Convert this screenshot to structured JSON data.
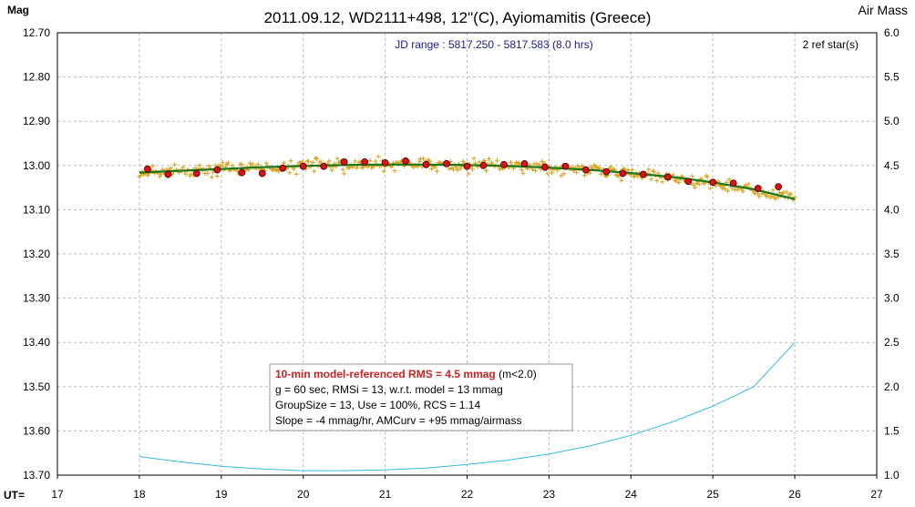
{
  "chart_data": {
    "type": "scatter",
    "title": "2011.09.12, WD2111+498, 12\"(C), Ayiomamitis (Greece)",
    "ylabel_left": "Mag",
    "ylabel_right": "Air Mass",
    "xlabel": "UT=",
    "jd_range": "JD range : 5817.250 - 5817.583 (8.0 hrs)",
    "ref_stars": "2 ref star(s)",
    "xlim": [
      17,
      27
    ],
    "ylim_mag": [
      12.7,
      13.7
    ],
    "ylim_airmass": [
      1.0,
      6.0
    ],
    "x_ticks": [
      "17",
      "18",
      "19",
      "20",
      "21",
      "22",
      "23",
      "24",
      "25",
      "26",
      "27"
    ],
    "y_ticks_left": [
      "12.70",
      "12.80",
      "12.90",
      "13.00",
      "13.10",
      "13.20",
      "13.30",
      "13.40",
      "13.50",
      "13.60",
      "13.70"
    ],
    "y_ticks_right": [
      "6.0",
      "5.5",
      "5.0",
      "4.5",
      "4.0",
      "3.5",
      "3.0",
      "2.5",
      "2.0",
      "1.5",
      "1.0"
    ],
    "grid": true,
    "colors": {
      "raw_points": "#d4a017",
      "binned_points": "#dd1111",
      "model_fit": "#1a7a1a",
      "airmass": "#33bbdd"
    },
    "binned_means": [
      {
        "ut": 18.1,
        "mag": 13.008
      },
      {
        "ut": 18.35,
        "mag": 13.02
      },
      {
        "ut": 18.7,
        "mag": 13.018
      },
      {
        "ut": 18.95,
        "mag": 13.01
      },
      {
        "ut": 19.25,
        "mag": 13.016
      },
      {
        "ut": 19.5,
        "mag": 13.018
      },
      {
        "ut": 19.75,
        "mag": 13.006
      },
      {
        "ut": 20.0,
        "mag": 13.002
      },
      {
        "ut": 20.25,
        "mag": 13.002
      },
      {
        "ut": 20.5,
        "mag": 12.992
      },
      {
        "ut": 20.75,
        "mag": 12.992
      },
      {
        "ut": 21.0,
        "mag": 12.994
      },
      {
        "ut": 21.25,
        "mag": 12.99
      },
      {
        "ut": 21.5,
        "mag": 12.998
      },
      {
        "ut": 21.75,
        "mag": 12.996
      },
      {
        "ut": 22.0,
        "mag": 13.002
      },
      {
        "ut": 22.2,
        "mag": 13.0
      },
      {
        "ut": 22.45,
        "mag": 12.998
      },
      {
        "ut": 22.7,
        "mag": 12.996
      },
      {
        "ut": 22.95,
        "mag": 13.004
      },
      {
        "ut": 23.2,
        "mag": 13.002
      },
      {
        "ut": 23.45,
        "mag": 13.01
      },
      {
        "ut": 23.7,
        "mag": 13.014
      },
      {
        "ut": 23.9,
        "mag": 13.018
      },
      {
        "ut": 24.15,
        "mag": 13.02
      },
      {
        "ut": 24.45,
        "mag": 13.026
      },
      {
        "ut": 24.7,
        "mag": 13.036
      },
      {
        "ut": 25.0,
        "mag": 13.038
      },
      {
        "ut": 25.25,
        "mag": 13.04
      },
      {
        "ut": 25.55,
        "mag": 13.052
      },
      {
        "ut": 25.8,
        "mag": 13.048
      }
    ],
    "model_fit": [
      {
        "ut": 18.0,
        "mag": 13.016
      },
      {
        "ut": 18.5,
        "mag": 13.012
      },
      {
        "ut": 19.0,
        "mag": 13.008
      },
      {
        "ut": 19.5,
        "mag": 13.004
      },
      {
        "ut": 20.0,
        "mag": 13.001
      },
      {
        "ut": 20.5,
        "mag": 12.999
      },
      {
        "ut": 21.0,
        "mag": 12.998
      },
      {
        "ut": 21.5,
        "mag": 12.998
      },
      {
        "ut": 22.0,
        "mag": 12.999
      },
      {
        "ut": 22.5,
        "mag": 13.001
      },
      {
        "ut": 23.0,
        "mag": 13.005
      },
      {
        "ut": 23.5,
        "mag": 13.01
      },
      {
        "ut": 24.0,
        "mag": 13.017
      },
      {
        "ut": 24.5,
        "mag": 13.026
      },
      {
        "ut": 25.0,
        "mag": 13.038
      },
      {
        "ut": 25.5,
        "mag": 13.054
      },
      {
        "ut": 26.0,
        "mag": 13.076
      }
    ],
    "airmass": [
      {
        "ut": 18.0,
        "am": 1.21
      },
      {
        "ut": 18.5,
        "am": 1.15
      },
      {
        "ut": 19.0,
        "am": 1.1
      },
      {
        "ut": 19.5,
        "am": 1.07
      },
      {
        "ut": 20.0,
        "am": 1.05
      },
      {
        "ut": 20.5,
        "am": 1.05
      },
      {
        "ut": 21.0,
        "am": 1.06
      },
      {
        "ut": 21.5,
        "am": 1.08
      },
      {
        "ut": 22.0,
        "am": 1.12
      },
      {
        "ut": 22.5,
        "am": 1.17
      },
      {
        "ut": 23.0,
        "am": 1.24
      },
      {
        "ut": 23.5,
        "am": 1.33
      },
      {
        "ut": 24.0,
        "am": 1.45
      },
      {
        "ut": 24.5,
        "am": 1.6
      },
      {
        "ut": 25.0,
        "am": 1.78
      },
      {
        "ut": 25.5,
        "am": 2.0
      },
      {
        "ut": 26.0,
        "am": 2.5
      }
    ],
    "raw_scatter_sigma_mag": 0.013,
    "raw_cadence_sec": 60,
    "info_box": {
      "line1_bold": "10-min model-referenced RMS = 4.5 mmag",
      "line1_rest": " (m<2.0)",
      "line2": "g = 60 sec, RMSi = 13, w.r.t. model = 13 mmag",
      "line3": "GroupSize = 13, Use = 100%, RCS = 1.14",
      "line4": "Slope = -4 mmag/hr, AMCurv = +95 mmag/airmass"
    }
  }
}
